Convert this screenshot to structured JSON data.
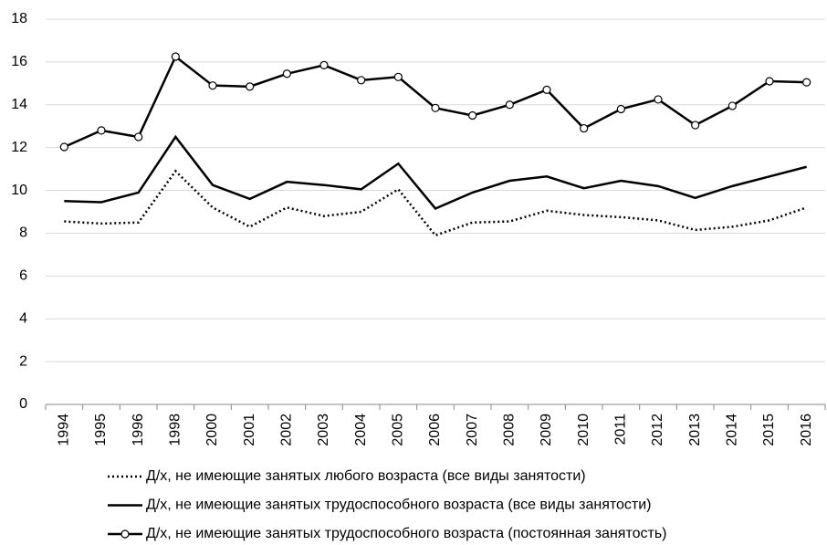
{
  "chart_data": {
    "type": "line",
    "categories": [
      "1994",
      "1995",
      "1996",
      "1998",
      "2000",
      "2001",
      "2002",
      "2003",
      "2004",
      "2005",
      "2006",
      "2007",
      "2008",
      "2009",
      "2010",
      "2011",
      "2012",
      "2013",
      "2014",
      "2015",
      "2016"
    ],
    "ylim": [
      0,
      18
    ],
    "yticks": [
      0,
      2,
      4,
      6,
      8,
      10,
      12,
      14,
      16,
      18
    ],
    "grid": true,
    "series": [
      {
        "name": "Д/х, не имеющие занятых любого возраста (все виды занятости)",
        "color": "#000000",
        "dash": "dotted",
        "marker": "none",
        "values": [
          8.55,
          8.45,
          8.5,
          10.9,
          9.2,
          8.3,
          9.2,
          8.8,
          9.0,
          10.05,
          7.9,
          8.5,
          8.55,
          9.05,
          8.85,
          8.75,
          8.6,
          8.15,
          8.3,
          8.6,
          9.2
        ]
      },
      {
        "name": "Д/х, не имеющие занятых трудоспособного возраста (все виды занятости)",
        "color": "#000000",
        "dash": "solid",
        "marker": "none",
        "values": [
          9.5,
          9.45,
          9.9,
          12.5,
          10.25,
          9.6,
          10.4,
          10.25,
          10.05,
          11.25,
          9.15,
          9.9,
          10.45,
          10.65,
          10.1,
          10.45,
          10.2,
          9.65,
          10.2,
          10.65,
          11.1
        ]
      },
      {
        "name": "Д/х, не имеющие занятых трудоспособного возраста (постоянная занятость)",
        "color": "#000000",
        "dash": "solid",
        "marker": "circle",
        "values": [
          12.03,
          12.8,
          12.5,
          16.25,
          14.9,
          14.85,
          15.45,
          15.85,
          15.15,
          15.3,
          13.85,
          13.5,
          14.0,
          14.7,
          12.9,
          13.8,
          14.25,
          13.05,
          13.95,
          15.1,
          15.05
        ]
      }
    ]
  }
}
